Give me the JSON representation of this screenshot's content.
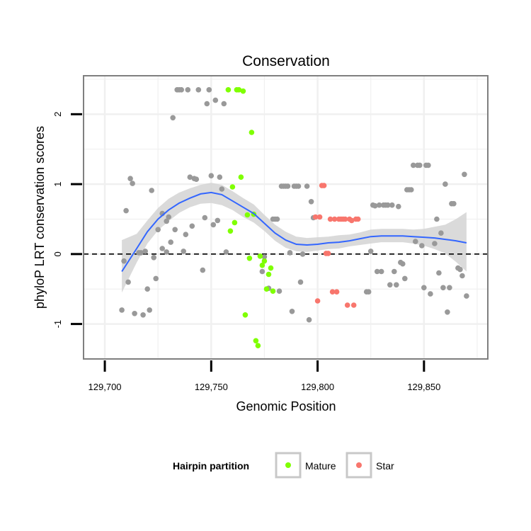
{
  "chart_data": {
    "type": "scatter",
    "title": "Conservation",
    "xlabel": "Genomic Position",
    "ylabel": "phyloP LRT conservation scores",
    "xlim": [
      129690,
      129880
    ],
    "ylim": [
      -1.5,
      2.55
    ],
    "x_ticks": [
      129700,
      129750,
      129800,
      129850
    ],
    "x_tick_labels": [
      "129,700",
      "129,750",
      "129,800",
      "129,850"
    ],
    "y_ticks": [
      -1,
      0,
      1,
      2
    ],
    "y_tick_labels": [
      "-1",
      "0",
      "1",
      "2"
    ],
    "reference_line": {
      "y": 0,
      "style": "dashed"
    },
    "colors": {
      "other": "#999999",
      "mature": "#7fff00",
      "star": "#f8766d",
      "smooth": "#3366ff",
      "band": "#d3d3d3",
      "panel_border": "#7f7f7f",
      "grid": "#f0f0f0"
    },
    "legend": {
      "title": "Hairpin partition",
      "position": "bottom",
      "entries": [
        {
          "label": "Mature",
          "color": "#7fff00"
        },
        {
          "label": "Star",
          "color": "#f8766d"
        }
      ]
    },
    "series": [
      {
        "name": "Other",
        "color": "#999999",
        "points": [
          [
            129708,
            -0.8
          ],
          [
            129709,
            -0.1
          ],
          [
            129710,
            0.62
          ],
          [
            129711,
            -0.4
          ],
          [
            129712,
            1.08
          ],
          [
            129713,
            1.01
          ],
          [
            129714,
            -0.85
          ],
          [
            129716,
            0.02
          ],
          [
            129717,
            0.02
          ],
          [
            129718,
            -0.87
          ],
          [
            129719,
            0.04
          ],
          [
            129720,
            -0.5
          ],
          [
            129721,
            -0.8
          ],
          [
            129722,
            0.91
          ],
          [
            129723,
            -0.05
          ],
          [
            129724,
            -0.35
          ],
          [
            129725,
            0.35
          ],
          [
            129727,
            0.58
          ],
          [
            129727,
            0.08
          ],
          [
            129729,
            0.47
          ],
          [
            129729,
            0.03
          ],
          [
            129730,
            0.53
          ],
          [
            129731,
            0.17
          ],
          [
            129732,
            1.95
          ],
          [
            129733,
            0.35
          ],
          [
            129734,
            2.35
          ],
          [
            129735,
            2.35
          ],
          [
            129736,
            2.35
          ],
          [
            129737,
            0.04
          ],
          [
            129738,
            0.28
          ],
          [
            129739,
            2.35
          ],
          [
            129740,
            1.1
          ],
          [
            129741,
            0.4
          ],
          [
            129742,
            1.08
          ],
          [
            129743,
            1.07
          ],
          [
            129744,
            2.35
          ],
          [
            129746,
            -0.23
          ],
          [
            129747,
            0.52
          ],
          [
            129748,
            2.15
          ],
          [
            129749,
            2.35
          ],
          [
            129750,
            1.12
          ],
          [
            129751,
            0.42
          ],
          [
            129752,
            2.2
          ],
          [
            129753,
            0.48
          ],
          [
            129754,
            1.1
          ],
          [
            129755,
            0.93
          ],
          [
            129756,
            2.15
          ],
          [
            129757,
            0.03
          ],
          [
            129774,
            -0.25
          ],
          [
            129775,
            -0.04
          ],
          [
            129777,
            -0.49
          ],
          [
            129779,
            0.5
          ],
          [
            129780,
            0.5
          ],
          [
            129781,
            0.5
          ],
          [
            129782,
            -0.53
          ],
          [
            129783,
            0.97
          ],
          [
            129784,
            0.97
          ],
          [
            129785,
            0.97
          ],
          [
            129786,
            0.97
          ],
          [
            129787,
            0.02
          ],
          [
            129788,
            -0.82
          ],
          [
            129789,
            0.97
          ],
          [
            129790,
            0.97
          ],
          [
            129791,
            0.97
          ],
          [
            129792,
            -0.4
          ],
          [
            129793,
            0.0
          ],
          [
            129795,
            0.97
          ],
          [
            129796,
            -0.94
          ],
          [
            129797,
            0.75
          ],
          [
            129798,
            0.52
          ],
          [
            129823,
            -0.54
          ],
          [
            129824,
            -0.54
          ],
          [
            129825,
            0.04
          ],
          [
            129826,
            0.7
          ],
          [
            129827,
            0.69
          ],
          [
            129828,
            -0.25
          ],
          [
            129829,
            0.7
          ],
          [
            129830,
            -0.25
          ],
          [
            129831,
            0.7
          ],
          [
            129832,
            0.7
          ],
          [
            129833,
            0.7
          ],
          [
            129834,
            -0.44
          ],
          [
            129835,
            0.7
          ],
          [
            129836,
            -0.25
          ],
          [
            129837,
            -0.44
          ],
          [
            129838,
            0.68
          ],
          [
            129839,
            -0.12
          ],
          [
            129840,
            -0.14
          ],
          [
            129841,
            -0.35
          ],
          [
            129842,
            0.92
          ],
          [
            129843,
            0.92
          ],
          [
            129844,
            0.92
          ],
          [
            129845,
            1.27
          ],
          [
            129846,
            0.18
          ],
          [
            129847,
            1.27
          ],
          [
            129848,
            1.27
          ],
          [
            129849,
            0.12
          ],
          [
            129850,
            -0.48
          ],
          [
            129851,
            1.27
          ],
          [
            129852,
            1.27
          ],
          [
            129853,
            -0.57
          ],
          [
            129855,
            0.15
          ],
          [
            129856,
            0.5
          ],
          [
            129857,
            -0.27
          ],
          [
            129858,
            0.3
          ],
          [
            129859,
            -0.48
          ],
          [
            129860,
            1.0
          ],
          [
            129861,
            -0.83
          ],
          [
            129862,
            -0.48
          ],
          [
            129863,
            0.72
          ],
          [
            129864,
            0.72
          ],
          [
            129866,
            -0.2
          ],
          [
            129867,
            -0.22
          ],
          [
            129868,
            -0.31
          ],
          [
            129869,
            1.14
          ],
          [
            129870,
            -0.6
          ]
        ]
      },
      {
        "name": "Mature",
        "color": "#7fff00",
        "points": [
          [
            129758,
            2.35
          ],
          [
            129759,
            0.33
          ],
          [
            129760,
            0.96
          ],
          [
            129761,
            0.45
          ],
          [
            129762,
            2.35
          ],
          [
            129763,
            2.35
          ],
          [
            129764,
            1.1
          ],
          [
            129765,
            2.33
          ],
          [
            129766,
            -0.87
          ],
          [
            129767,
            0.56
          ],
          [
            129768,
            -0.06
          ],
          [
            129769,
            1.74
          ],
          [
            129770,
            0.57
          ],
          [
            129771,
            -1.24
          ],
          [
            129772,
            -1.31
          ],
          [
            129773,
            -0.03
          ],
          [
            129774,
            -0.16
          ],
          [
            129775,
            -0.1
          ],
          [
            129776,
            -0.5
          ],
          [
            129777,
            -0.29
          ],
          [
            129778,
            -0.2
          ],
          [
            129779,
            -0.53
          ]
        ]
      },
      {
        "name": "Star",
        "color": "#f8766d",
        "points": [
          [
            129799,
            0.53
          ],
          [
            129800,
            -0.67
          ],
          [
            129801,
            0.53
          ],
          [
            129802,
            0.98
          ],
          [
            129803,
            0.98
          ],
          [
            129804,
            0.01
          ],
          [
            129805,
            0.01
          ],
          [
            129806,
            0.5
          ],
          [
            129807,
            -0.54
          ],
          [
            129808,
            0.5
          ],
          [
            129809,
            -0.54
          ],
          [
            129810,
            0.5
          ],
          [
            129811,
            0.5
          ],
          [
            129812,
            0.5
          ],
          [
            129813,
            0.5
          ],
          [
            129814,
            -0.73
          ],
          [
            129815,
            0.5
          ],
          [
            129816,
            0.48
          ],
          [
            129817,
            -0.73
          ],
          [
            129818,
            0.5
          ],
          [
            129819,
            0.5
          ]
        ]
      }
    ],
    "smooth": {
      "x": [
        129708,
        129715,
        129720,
        129725,
        129730,
        129735,
        129740,
        129745,
        129750,
        129755,
        129760,
        129765,
        129770,
        129775,
        129780,
        129785,
        129790,
        129795,
        129800,
        129805,
        129810,
        129815,
        129820,
        129825,
        129830,
        129835,
        129840,
        129845,
        129850,
        129855,
        129860,
        129865,
        129870
      ],
      "y": [
        -0.25,
        0.08,
        0.32,
        0.5,
        0.63,
        0.73,
        0.8,
        0.86,
        0.88,
        0.85,
        0.76,
        0.67,
        0.58,
        0.44,
        0.3,
        0.2,
        0.14,
        0.13,
        0.14,
        0.16,
        0.17,
        0.19,
        0.22,
        0.25,
        0.26,
        0.26,
        0.26,
        0.25,
        0.24,
        0.23,
        0.21,
        0.19,
        0.16
      ],
      "lower": [
        -0.55,
        -0.12,
        0.15,
        0.34,
        0.47,
        0.59,
        0.67,
        0.72,
        0.73,
        0.7,
        0.63,
        0.53,
        0.45,
        0.33,
        0.19,
        0.09,
        0.04,
        0.03,
        0.05,
        0.07,
        0.08,
        0.11,
        0.13,
        0.15,
        0.17,
        0.17,
        0.17,
        0.15,
        0.12,
        0.07,
        0.01,
        -0.11,
        -0.25
      ],
      "upper": [
        0.2,
        0.29,
        0.48,
        0.66,
        0.79,
        0.88,
        0.94,
        0.99,
        1.02,
        0.99,
        0.9,
        0.8,
        0.71,
        0.56,
        0.42,
        0.32,
        0.25,
        0.23,
        0.24,
        0.25,
        0.27,
        0.28,
        0.31,
        0.35,
        0.36,
        0.36,
        0.36,
        0.35,
        0.36,
        0.39,
        0.42,
        0.5,
        0.6
      ]
    }
  }
}
